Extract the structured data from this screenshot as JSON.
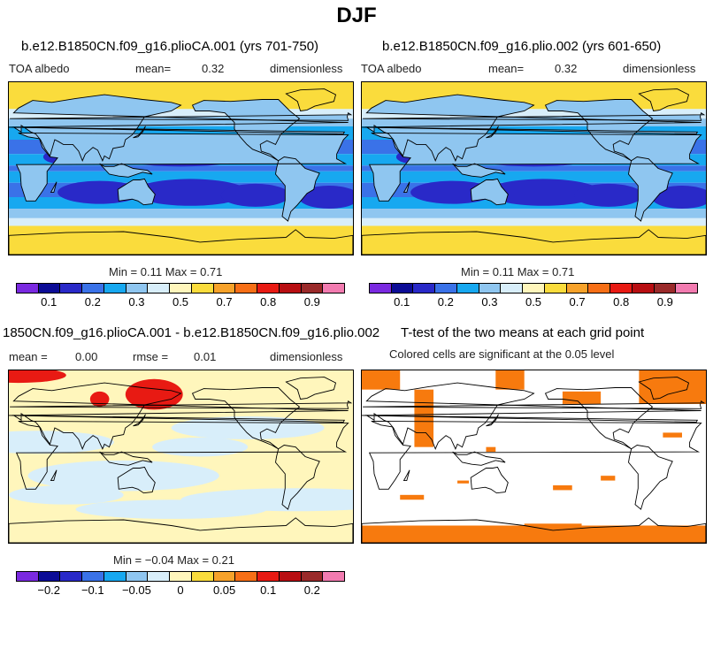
{
  "season": "DJF",
  "colors": {
    "albedo": [
      "#7a29e0",
      "#0c0c96",
      "#2929c8",
      "#3a72e8",
      "#17a8f0",
      "#8fc6f0",
      "#d8eefa",
      "#fff6bc",
      "#fadc3c",
      "#f7a22a",
      "#f76f16",
      "#e81a13",
      "#b80e12",
      "#9a2a2a",
      "#f27bb0"
    ],
    "diff": [
      "#7a29e0",
      "#0c0c96",
      "#2929c8",
      "#3a72e8",
      "#17a8f0",
      "#8fc6f0",
      "#d8eefa",
      "#fff6bc",
      "#fadc3c",
      "#f7a22a",
      "#f76f16",
      "#e81a13",
      "#b80e12",
      "#9a2a2a",
      "#f27bb0"
    ],
    "ttest_fill": "#f77a0e",
    "land_outline": "#000000"
  },
  "panels": {
    "p1": {
      "title": "b.e12.B1850CN.f09_g16.plioCA.001 (yrs 701-750)",
      "variable": "TOA albedo",
      "mean_label": "mean=",
      "mean_value": "0.32",
      "units": "dimensionless",
      "min_max": "Min =    0.11  Max =    0.71",
      "colorbar_labels": [
        "0.1",
        "0.2",
        "0.3",
        "0.5",
        "0.7",
        "0.8",
        "0.9"
      ]
    },
    "p2": {
      "title": "b.e12.B1850CN.f09_g16.plio.002 (yrs 601-650)",
      "variable": "TOA albedo",
      "mean_label": "mean=",
      "mean_value": "0.32",
      "units": "dimensionless",
      "min_max": "Min =    0.11  Max =    0.71",
      "colorbar_labels": [
        "0.1",
        "0.2",
        "0.3",
        "0.5",
        "0.7",
        "0.8",
        "0.9"
      ]
    },
    "p3": {
      "title": "1850CN.f09_g16.plioCA.001 - b.e12.B1850CN.f09_g16.plio.002",
      "mean_label": "mean =",
      "mean_value": "0.00",
      "rmse_label": "rmse =",
      "rmse_value": "0.01",
      "units": "dimensionless",
      "min_max": "Min =  −0.04  Max =    0.21",
      "colorbar_labels": [
        "−0.2",
        "−0.1",
        "−0.05",
        "0",
        "0.05",
        "0.1",
        "0.2"
      ]
    },
    "p4": {
      "title": "T-test of the two means at each grid point",
      "subtitle": "Colored cells are significant at the 0.05 level"
    }
  }
}
